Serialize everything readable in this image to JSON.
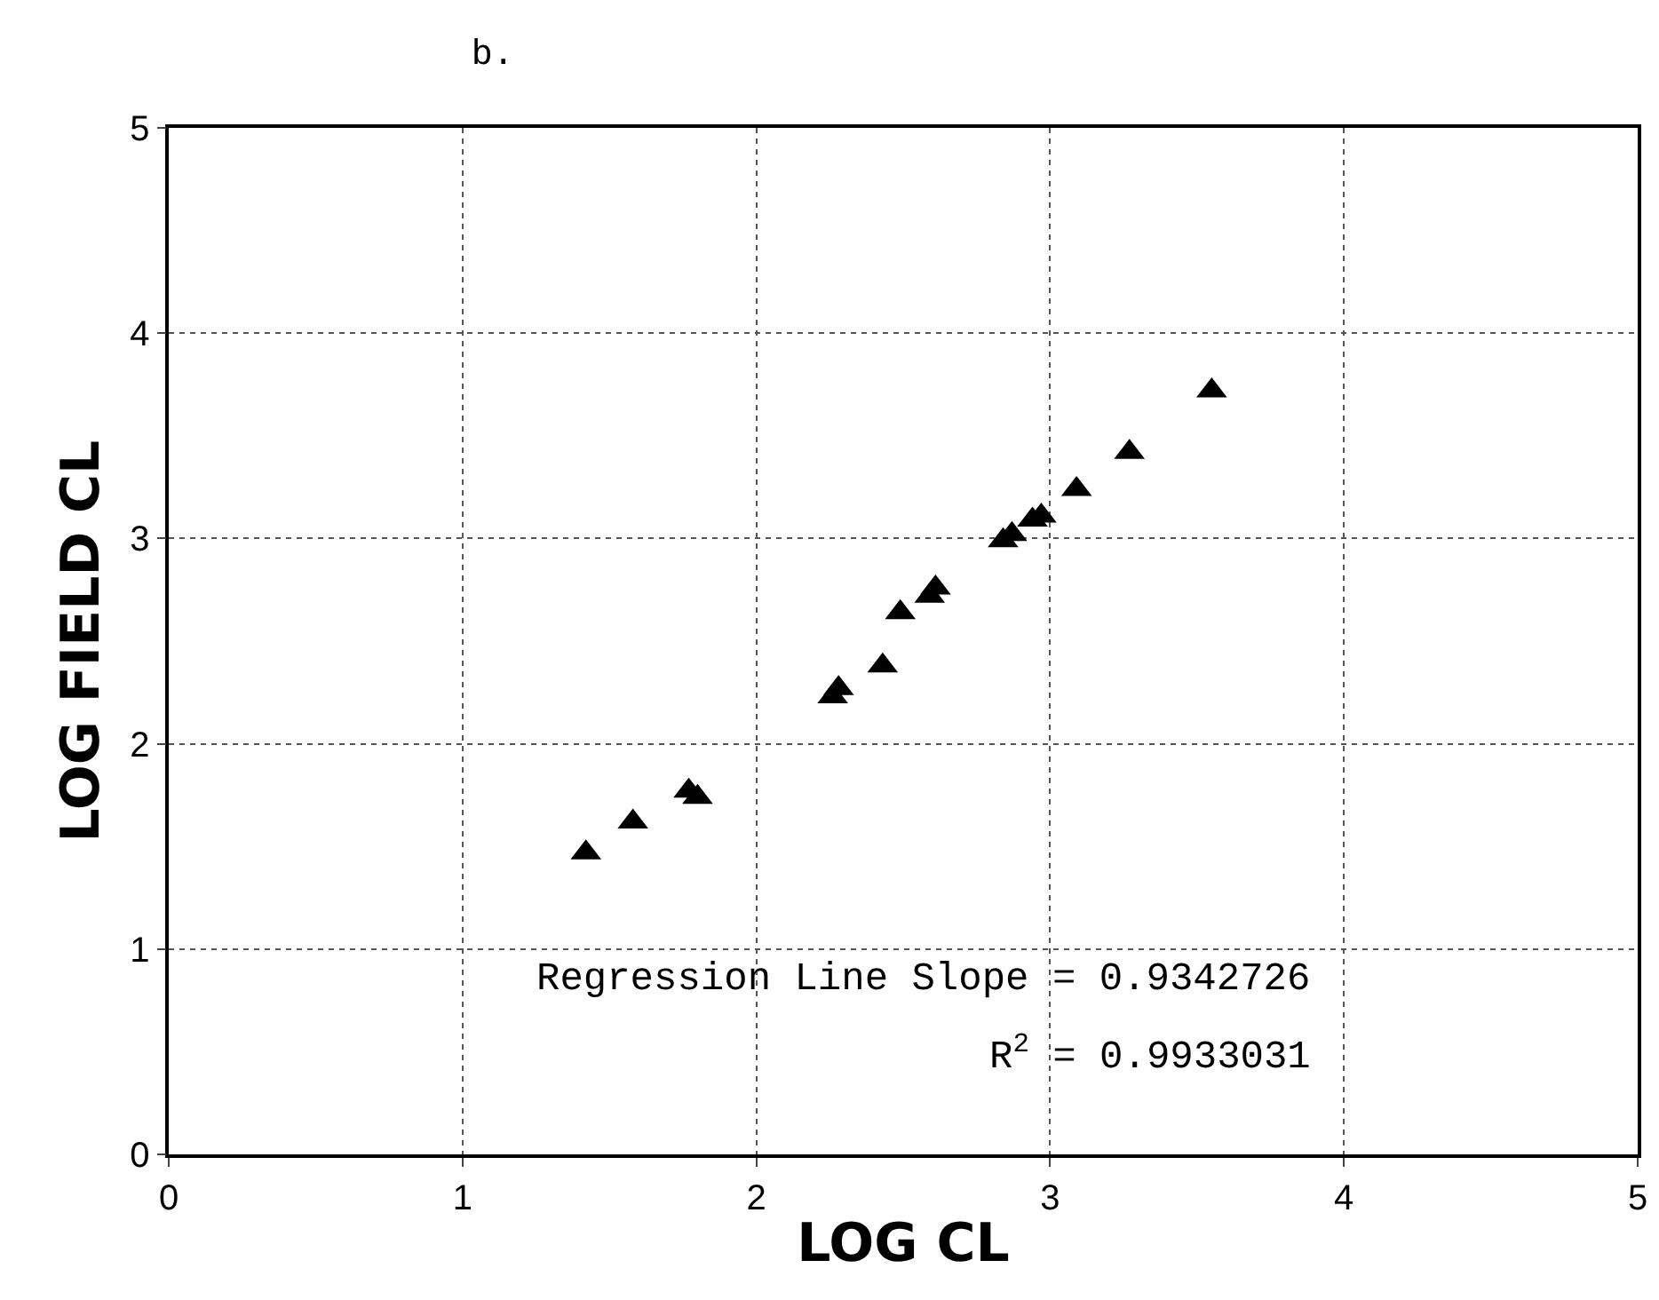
{
  "chart_data": {
    "type": "scatter",
    "title": "b.",
    "xlabel": "LOG CL",
    "ylabel": "LOG FIELD CL",
    "x": [
      1.42,
      1.58,
      1.77,
      1.8,
      2.26,
      2.28,
      2.43,
      2.49,
      2.59,
      2.61,
      2.84,
      2.87,
      2.94,
      2.97,
      3.09,
      3.27,
      3.55
    ],
    "series": [
      {
        "color": "#000000",
        "values": [
          1.47,
          1.62,
          1.77,
          1.74,
          2.23,
          2.27,
          2.38,
          2.64,
          2.72,
          2.76,
          2.99,
          3.02,
          3.09,
          3.11,
          3.24,
          3.42,
          3.72
        ]
      }
    ],
    "xlim": [
      0,
      5
    ],
    "ylim": [
      0,
      5
    ],
    "xticks": [
      0,
      1,
      2,
      3,
      4,
      5
    ],
    "yticks": [
      0,
      1,
      2,
      3,
      4,
      5
    ],
    "grid": true,
    "marker": "triangle",
    "annotations": [
      "Regression Line Slope = 0.9342726",
      "R$^{2}$ = 0.9933031"
    ]
  }
}
